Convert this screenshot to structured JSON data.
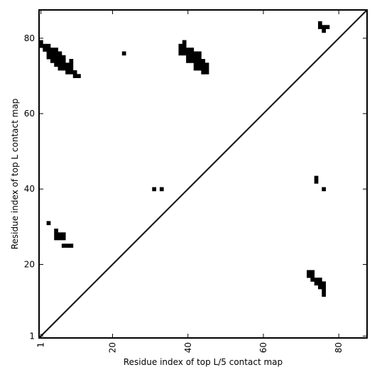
{
  "chart_data": {
    "type": "heatmap",
    "title": "",
    "xlabel": "Residue index of top L/5 contact map",
    "ylabel": "Residue index of top L contact map",
    "xlim": [
      0.5,
      87.5
    ],
    "ylim": [
      0.5,
      87.5
    ],
    "x_ticks": [
      1,
      20,
      40,
      60,
      80
    ],
    "y_ticks": [
      1,
      20,
      40,
      60,
      80
    ],
    "x_tick_labels": [
      "1",
      "20",
      "40",
      "60",
      "80"
    ],
    "y_tick_labels": [
      "1",
      "20",
      "40",
      "60",
      "80"
    ],
    "diagonal": true,
    "cell_color": "#000000",
    "contact_cells": [
      [
        1,
        79
      ],
      [
        1,
        78
      ],
      [
        2,
        78
      ],
      [
        2,
        77
      ],
      [
        3,
        78
      ],
      [
        3,
        77
      ],
      [
        3,
        76
      ],
      [
        3,
        75
      ],
      [
        4,
        77
      ],
      [
        4,
        76
      ],
      [
        4,
        75
      ],
      [
        4,
        74
      ],
      [
        5,
        77
      ],
      [
        5,
        76
      ],
      [
        5,
        75
      ],
      [
        5,
        74
      ],
      [
        5,
        73
      ],
      [
        6,
        76
      ],
      [
        6,
        75
      ],
      [
        6,
        74
      ],
      [
        6,
        73
      ],
      [
        6,
        72
      ],
      [
        7,
        75
      ],
      [
        7,
        74
      ],
      [
        7,
        73
      ],
      [
        7,
        72
      ],
      [
        8,
        73
      ],
      [
        8,
        72
      ],
      [
        8,
        71
      ],
      [
        9,
        74
      ],
      [
        9,
        73
      ],
      [
        9,
        72
      ],
      [
        9,
        71
      ],
      [
        10,
        71
      ],
      [
        10,
        70
      ],
      [
        11,
        70
      ],
      [
        23,
        76
      ],
      [
        38,
        78
      ],
      [
        38,
        77
      ],
      [
        38,
        76
      ],
      [
        39,
        79
      ],
      [
        39,
        78
      ],
      [
        39,
        77
      ],
      [
        39,
        76
      ],
      [
        40,
        77
      ],
      [
        40,
        76
      ],
      [
        40,
        75
      ],
      [
        40,
        74
      ],
      [
        41,
        77
      ],
      [
        41,
        76
      ],
      [
        41,
        75
      ],
      [
        41,
        74
      ],
      [
        42,
        76
      ],
      [
        42,
        75
      ],
      [
        42,
        74
      ],
      [
        42,
        73
      ],
      [
        42,
        72
      ],
      [
        43,
        76
      ],
      [
        43,
        75
      ],
      [
        43,
        74
      ],
      [
        43,
        73
      ],
      [
        43,
        72
      ],
      [
        44,
        74
      ],
      [
        44,
        73
      ],
      [
        44,
        72
      ],
      [
        44,
        71
      ],
      [
        45,
        73
      ],
      [
        45,
        72
      ],
      [
        45,
        71
      ],
      [
        75,
        84
      ],
      [
        75,
        83
      ],
      [
        76,
        83
      ],
      [
        76,
        82
      ],
      [
        77,
        83
      ],
      [
        3,
        31
      ],
      [
        5,
        29
      ],
      [
        5,
        28
      ],
      [
        5,
        27
      ],
      [
        6,
        28
      ],
      [
        6,
        27
      ],
      [
        7,
        28
      ],
      [
        7,
        27
      ],
      [
        7,
        25
      ],
      [
        8,
        25
      ],
      [
        9,
        25
      ],
      [
        31,
        40
      ],
      [
        33,
        40
      ],
      [
        74,
        43
      ],
      [
        74,
        42
      ],
      [
        76,
        40
      ],
      [
        72,
        18
      ],
      [
        72,
        17
      ],
      [
        73,
        18
      ],
      [
        73,
        17
      ],
      [
        73,
        16
      ],
      [
        74,
        16
      ],
      [
        74,
        15
      ],
      [
        75,
        16
      ],
      [
        75,
        15
      ],
      [
        75,
        14
      ],
      [
        76,
        15
      ],
      [
        76,
        14
      ],
      [
        76,
        13
      ],
      [
        76,
        12
      ]
    ]
  }
}
